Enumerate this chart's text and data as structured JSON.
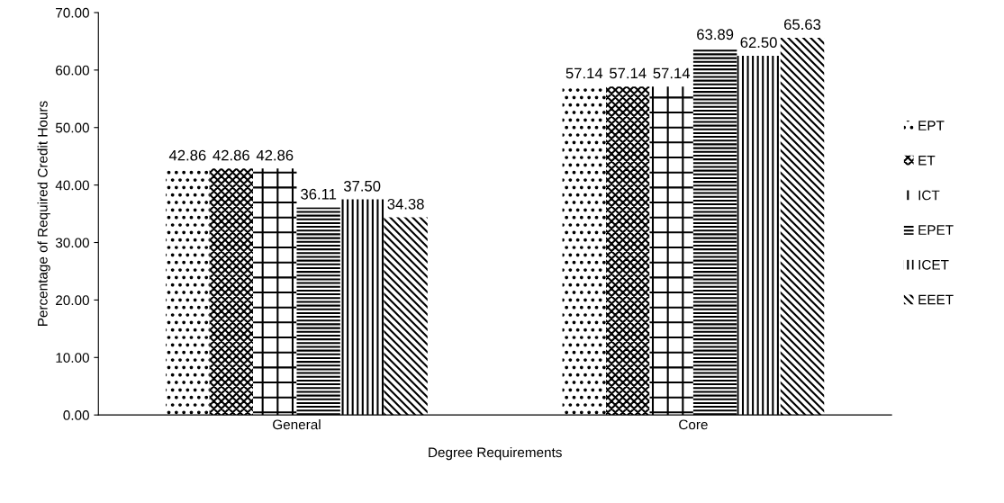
{
  "chart_data": {
    "type": "bar",
    "xlabel": "Degree Requirements",
    "ylabel": "Percentage of Required Credit Hours",
    "categories": [
      "General",
      "Core"
    ],
    "series": [
      {
        "name": "EPT",
        "color": "#000000",
        "values": [
          42.86,
          57.14
        ],
        "value_labels": [
          "42.86",
          "57.14"
        ]
      },
      {
        "name": "ET",
        "color": "#000000",
        "values": [
          42.86,
          57.14
        ],
        "value_labels": [
          "42.86",
          "57.14"
        ]
      },
      {
        "name": "ICT",
        "color": "#000000",
        "values": [
          42.86,
          57.14
        ],
        "value_labels": [
          "42.86",
          "57.14"
        ]
      },
      {
        "name": "EPET",
        "color": "#000000",
        "values": [
          36.11,
          63.89
        ],
        "value_labels": [
          "36.11",
          "63.89"
        ]
      },
      {
        "name": "ICET",
        "color": "#000000",
        "values": [
          37.5,
          62.5
        ],
        "value_labels": [
          "37.50",
          "62.50"
        ]
      },
      {
        "name": "EEET",
        "color": "#000000",
        "values": [
          34.38,
          65.63
        ],
        "value_labels": [
          "34.38",
          "65.63"
        ]
      }
    ],
    "ylim": [
      0,
      70
    ],
    "yticks": [
      {
        "value": 0,
        "label": "0.00"
      },
      {
        "value": 10,
        "label": "10.00"
      },
      {
        "value": 20,
        "label": "20.00"
      },
      {
        "value": 30,
        "label": "30.00"
      },
      {
        "value": 40,
        "label": "40.00"
      },
      {
        "value": 50,
        "label": "50.00"
      },
      {
        "value": 60,
        "label": "60.00"
      },
      {
        "value": 70,
        "label": "70.00"
      }
    ],
    "grid": false,
    "legend": "right"
  }
}
